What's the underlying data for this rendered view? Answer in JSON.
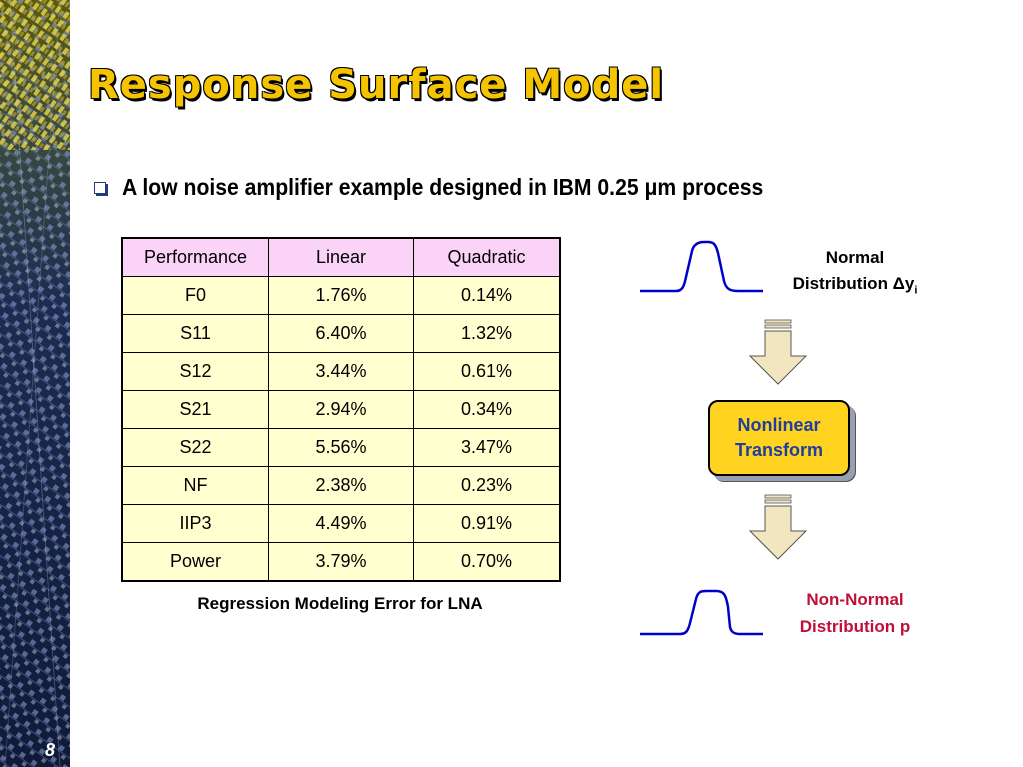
{
  "slide": {
    "title": "Response Surface Model",
    "number": "8",
    "bullet": "A low noise amplifier example designed in IBM 0.25 μm process"
  },
  "table": {
    "headers": [
      "Performance",
      "Linear",
      "Quadratic"
    ],
    "rows": [
      [
        "F0",
        "1.76%",
        "0.14%"
      ],
      [
        "S11",
        "6.40%",
        "1.32%"
      ],
      [
        "S12",
        "3.44%",
        "0.61%"
      ],
      [
        "S21",
        "2.94%",
        "0.34%"
      ],
      [
        "S22",
        "5.56%",
        "3.47%"
      ],
      [
        "NF",
        "2.38%",
        "0.23%"
      ],
      [
        "IIP3",
        "4.49%",
        "0.91%"
      ],
      [
        "Power",
        "3.79%",
        "0.70%"
      ]
    ],
    "caption": "Regression Modeling Error for LNA"
  },
  "diagram": {
    "normal_line1": "Normal",
    "normal_line2": "Distribution Δy",
    "normal_subscript": "i",
    "transform_line1": "Nonlinear",
    "transform_line2": "Transform",
    "nonnormal_line1": "Non-Normal",
    "nonnormal_line2": "Distribution p"
  },
  "colors": {
    "title": "#f5c400",
    "table_header": "#fbd2f8",
    "table_cell": "#ffffd0",
    "curve": "#0000cc",
    "transform_box": "#ffd320",
    "transform_text": "#1e3fa0",
    "nonnormal_text": "#c0103a",
    "arrow": "#f2e6c0"
  }
}
